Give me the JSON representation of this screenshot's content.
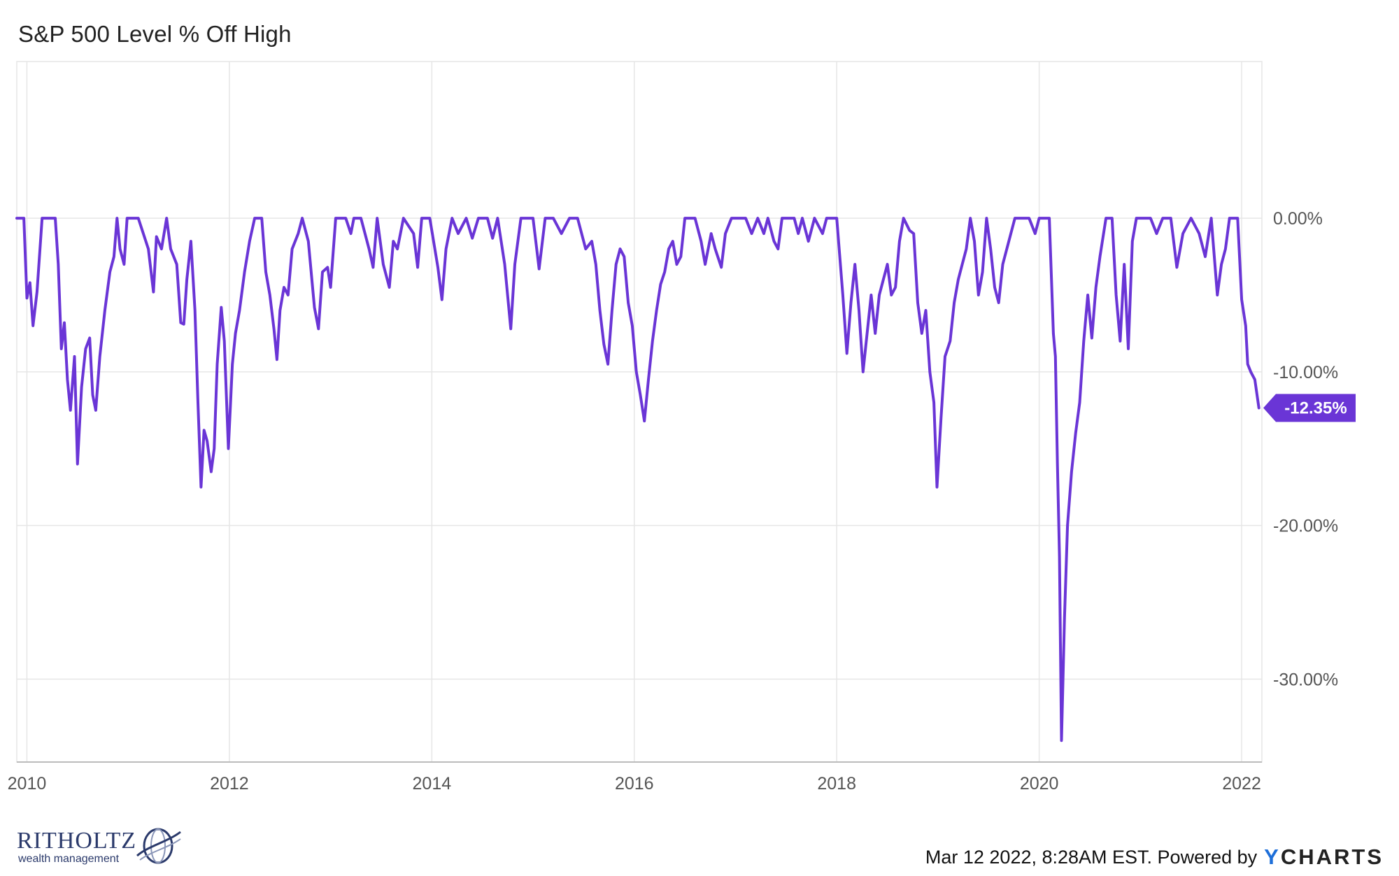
{
  "title": "S&P 500 Level % Off High",
  "footer": {
    "timestamp": "Mar 12 2022, 8:28AM EST. Powered by",
    "brand_y": "Y",
    "brand_rest": "CHARTS"
  },
  "logo": {
    "name": "RITHOLTZ",
    "tagline": "wealth management"
  },
  "colors": {
    "series": "#6a35d6",
    "grid": "#e6e6e6",
    "axis": "#bbbbbb"
  },
  "chart_data": {
    "type": "line",
    "title": "S&P 500 Level % Off High",
    "xlim": [
      2009.9,
      2022.2
    ],
    "ylim": [
      -35.4,
      10.2
    ],
    "y_ticks": [
      0,
      -10,
      -20,
      -30
    ],
    "y_tick_labels": [
      "0.00%",
      "-10.00%",
      "-20.00%",
      "-30.00%"
    ],
    "x_ticks": [
      2010,
      2012,
      2014,
      2016,
      2018,
      2020,
      2022
    ],
    "x_tick_labels": [
      "2010",
      "2012",
      "2014",
      "2016",
      "2018",
      "2020",
      "2022"
    ],
    "last_value_label": "-12.35%",
    "last_value": -12.35,
    "grid": true,
    "series": [
      {
        "values": [
          [
            2009.9,
            0
          ],
          [
            2009.97,
            0
          ],
          [
            2010.0,
            -5.2
          ],
          [
            2010.03,
            -4.2
          ],
          [
            2010.06,
            -7
          ],
          [
            2010.1,
            -4.8
          ],
          [
            2010.15,
            0
          ],
          [
            2010.22,
            0
          ],
          [
            2010.28,
            0
          ],
          [
            2010.31,
            -3
          ],
          [
            2010.34,
            -8.5
          ],
          [
            2010.37,
            -6.8
          ],
          [
            2010.4,
            -10.5
          ],
          [
            2010.43,
            -12.5
          ],
          [
            2010.47,
            -9
          ],
          [
            2010.5,
            -16
          ],
          [
            2010.54,
            -11
          ],
          [
            2010.58,
            -8.5
          ],
          [
            2010.62,
            -7.8
          ],
          [
            2010.65,
            -11.5
          ],
          [
            2010.68,
            -12.5
          ],
          [
            2010.72,
            -9
          ],
          [
            2010.77,
            -6
          ],
          [
            2010.82,
            -3.5
          ],
          [
            2010.86,
            -2.5
          ],
          [
            2010.89,
            0
          ],
          [
            2010.92,
            -2
          ],
          [
            2010.96,
            -3
          ],
          [
            2010.99,
            0
          ],
          [
            2011.1,
            0
          ],
          [
            2011.2,
            -2
          ],
          [
            2011.25,
            -4.8
          ],
          [
            2011.28,
            -1.2
          ],
          [
            2011.33,
            -2
          ],
          [
            2011.38,
            0
          ],
          [
            2011.42,
            -2
          ],
          [
            2011.48,
            -3
          ],
          [
            2011.52,
            -6.8
          ],
          [
            2011.55,
            -6.9
          ],
          [
            2011.58,
            -4
          ],
          [
            2011.62,
            -1.5
          ],
          [
            2011.66,
            -6
          ],
          [
            2011.69,
            -12
          ],
          [
            2011.72,
            -17.5
          ],
          [
            2011.75,
            -13.8
          ],
          [
            2011.78,
            -14.5
          ],
          [
            2011.82,
            -16.5
          ],
          [
            2011.85,
            -15
          ],
          [
            2011.88,
            -9.5
          ],
          [
            2011.92,
            -5.8
          ],
          [
            2011.95,
            -8
          ],
          [
            2011.99,
            -15
          ],
          [
            2012.03,
            -9.5
          ],
          [
            2012.06,
            -7.5
          ],
          [
            2012.1,
            -6
          ],
          [
            2012.15,
            -3.5
          ],
          [
            2012.2,
            -1.5
          ],
          [
            2012.25,
            0
          ],
          [
            2012.32,
            0
          ],
          [
            2012.36,
            -3.5
          ],
          [
            2012.4,
            -5
          ],
          [
            2012.44,
            -7.2
          ],
          [
            2012.47,
            -9.2
          ],
          [
            2012.5,
            -6
          ],
          [
            2012.54,
            -4.5
          ],
          [
            2012.58,
            -5
          ],
          [
            2012.62,
            -2
          ],
          [
            2012.68,
            -1
          ],
          [
            2012.72,
            0
          ],
          [
            2012.78,
            -1.5
          ],
          [
            2012.84,
            -5.8
          ],
          [
            2012.88,
            -7.2
          ],
          [
            2012.92,
            -3.5
          ],
          [
            2012.97,
            -3.2
          ],
          [
            2013.0,
            -4.5
          ],
          [
            2013.05,
            0
          ],
          [
            2013.15,
            0
          ],
          [
            2013.2,
            -1
          ],
          [
            2013.23,
            0
          ],
          [
            2013.3,
            0
          ],
          [
            2013.38,
            -2
          ],
          [
            2013.42,
            -3.2
          ],
          [
            2013.46,
            0
          ],
          [
            2013.52,
            -3
          ],
          [
            2013.58,
            -4.5
          ],
          [
            2013.62,
            -1.5
          ],
          [
            2013.66,
            -2
          ],
          [
            2013.72,
            0
          ],
          [
            2013.82,
            -1
          ],
          [
            2013.86,
            -3.2
          ],
          [
            2013.9,
            0
          ],
          [
            2013.98,
            0
          ],
          [
            2014.06,
            -3.2
          ],
          [
            2014.1,
            -5.3
          ],
          [
            2014.14,
            -2
          ],
          [
            2014.2,
            0
          ],
          [
            2014.26,
            -1
          ],
          [
            2014.34,
            0
          ],
          [
            2014.4,
            -1.3
          ],
          [
            2014.46,
            0
          ],
          [
            2014.55,
            0
          ],
          [
            2014.6,
            -1.3
          ],
          [
            2014.65,
            0
          ],
          [
            2014.72,
            -3
          ],
          [
            2014.78,
            -7.2
          ],
          [
            2014.82,
            -3
          ],
          [
            2014.88,
            0
          ],
          [
            2015.0,
            0
          ],
          [
            2015.06,
            -3.3
          ],
          [
            2015.12,
            0
          ],
          [
            2015.2,
            0
          ],
          [
            2015.28,
            -1
          ],
          [
            2015.36,
            0
          ],
          [
            2015.44,
            0
          ],
          [
            2015.52,
            -2
          ],
          [
            2015.58,
            -1.5
          ],
          [
            2015.62,
            -3
          ],
          [
            2015.66,
            -6
          ],
          [
            2015.7,
            -8.2
          ],
          [
            2015.74,
            -9.5
          ],
          [
            2015.78,
            -6
          ],
          [
            2015.82,
            -3
          ],
          [
            2015.86,
            -2
          ],
          [
            2015.9,
            -2.5
          ],
          [
            2015.94,
            -5.5
          ],
          [
            2015.98,
            -7
          ],
          [
            2016.02,
            -10
          ],
          [
            2016.06,
            -11.5
          ],
          [
            2016.1,
            -13.2
          ],
          [
            2016.14,
            -10.5
          ],
          [
            2016.18,
            -8
          ],
          [
            2016.22,
            -6
          ],
          [
            2016.26,
            -4.3
          ],
          [
            2016.3,
            -3.5
          ],
          [
            2016.34,
            -2
          ],
          [
            2016.38,
            -1.5
          ],
          [
            2016.42,
            -3
          ],
          [
            2016.46,
            -2.5
          ],
          [
            2016.5,
            0
          ],
          [
            2016.6,
            0
          ],
          [
            2016.66,
            -1.5
          ],
          [
            2016.7,
            -3
          ],
          [
            2016.76,
            -1
          ],
          [
            2016.8,
            -2
          ],
          [
            2016.86,
            -3.2
          ],
          [
            2016.9,
            -1
          ],
          [
            2016.96,
            0
          ],
          [
            2017.1,
            0
          ],
          [
            2017.16,
            -1
          ],
          [
            2017.22,
            0
          ],
          [
            2017.28,
            -1
          ],
          [
            2017.32,
            0
          ],
          [
            2017.38,
            -1.5
          ],
          [
            2017.42,
            -2
          ],
          [
            2017.46,
            0
          ],
          [
            2017.58,
            0
          ],
          [
            2017.62,
            -1
          ],
          [
            2017.66,
            0
          ],
          [
            2017.72,
            -1.5
          ],
          [
            2017.78,
            0
          ],
          [
            2017.86,
            -1
          ],
          [
            2017.9,
            0
          ],
          [
            2018.0,
            0
          ],
          [
            2018.06,
            -5
          ],
          [
            2018.1,
            -8.8
          ],
          [
            2018.14,
            -5.5
          ],
          [
            2018.18,
            -3
          ],
          [
            2018.22,
            -6
          ],
          [
            2018.26,
            -10
          ],
          [
            2018.3,
            -7.5
          ],
          [
            2018.34,
            -5
          ],
          [
            2018.38,
            -7.5
          ],
          [
            2018.42,
            -5
          ],
          [
            2018.46,
            -4
          ],
          [
            2018.5,
            -3
          ],
          [
            2018.54,
            -5
          ],
          [
            2018.58,
            -4.5
          ],
          [
            2018.62,
            -1.5
          ],
          [
            2018.66,
            0
          ],
          [
            2018.72,
            -0.8
          ],
          [
            2018.76,
            -1
          ],
          [
            2018.8,
            -5.5
          ],
          [
            2018.84,
            -7.5
          ],
          [
            2018.88,
            -6
          ],
          [
            2018.92,
            -10
          ],
          [
            2018.96,
            -12
          ],
          [
            2018.99,
            -17.5
          ],
          [
            2019.03,
            -13
          ],
          [
            2019.07,
            -9
          ],
          [
            2019.12,
            -8
          ],
          [
            2019.16,
            -5.5
          ],
          [
            2019.2,
            -4
          ],
          [
            2019.24,
            -3
          ],
          [
            2019.28,
            -2
          ],
          [
            2019.32,
            0
          ],
          [
            2019.36,
            -1.5
          ],
          [
            2019.4,
            -5
          ],
          [
            2019.44,
            -3.5
          ],
          [
            2019.48,
            0
          ],
          [
            2019.52,
            -2
          ],
          [
            2019.56,
            -4.5
          ],
          [
            2019.6,
            -5.5
          ],
          [
            2019.64,
            -3
          ],
          [
            2019.7,
            -1.5
          ],
          [
            2019.76,
            0
          ],
          [
            2019.9,
            0
          ],
          [
            2019.96,
            -1
          ],
          [
            2020.0,
            0
          ],
          [
            2020.1,
            0
          ],
          [
            2020.14,
            -7.5
          ],
          [
            2020.16,
            -9
          ],
          [
            2020.18,
            -16
          ],
          [
            2020.2,
            -22
          ],
          [
            2020.22,
            -34
          ],
          [
            2020.25,
            -26
          ],
          [
            2020.28,
            -20
          ],
          [
            2020.32,
            -16.5
          ],
          [
            2020.36,
            -14
          ],
          [
            2020.4,
            -12
          ],
          [
            2020.44,
            -8
          ],
          [
            2020.48,
            -5
          ],
          [
            2020.52,
            -7.8
          ],
          [
            2020.56,
            -4.5
          ],
          [
            2020.6,
            -2.5
          ],
          [
            2020.66,
            0
          ],
          [
            2020.72,
            0
          ],
          [
            2020.76,
            -5
          ],
          [
            2020.8,
            -8
          ],
          [
            2020.84,
            -3
          ],
          [
            2020.88,
            -8.5
          ],
          [
            2020.92,
            -1.5
          ],
          [
            2020.96,
            0
          ],
          [
            2021.1,
            0
          ],
          [
            2021.16,
            -1
          ],
          [
            2021.22,
            0
          ],
          [
            2021.3,
            0
          ],
          [
            2021.36,
            -3.2
          ],
          [
            2021.42,
            -1
          ],
          [
            2021.5,
            0
          ],
          [
            2021.58,
            -1
          ],
          [
            2021.64,
            -2.5
          ],
          [
            2021.7,
            0
          ],
          [
            2021.76,
            -5
          ],
          [
            2021.8,
            -3
          ],
          [
            2021.84,
            -2
          ],
          [
            2021.88,
            0
          ],
          [
            2021.96,
            0
          ],
          [
            2022.0,
            -5.3
          ],
          [
            2022.04,
            -7
          ],
          [
            2022.06,
            -9.5
          ],
          [
            2022.09,
            -10
          ],
          [
            2022.13,
            -10.5
          ],
          [
            2022.17,
            -12.35
          ]
        ]
      }
    ]
  }
}
